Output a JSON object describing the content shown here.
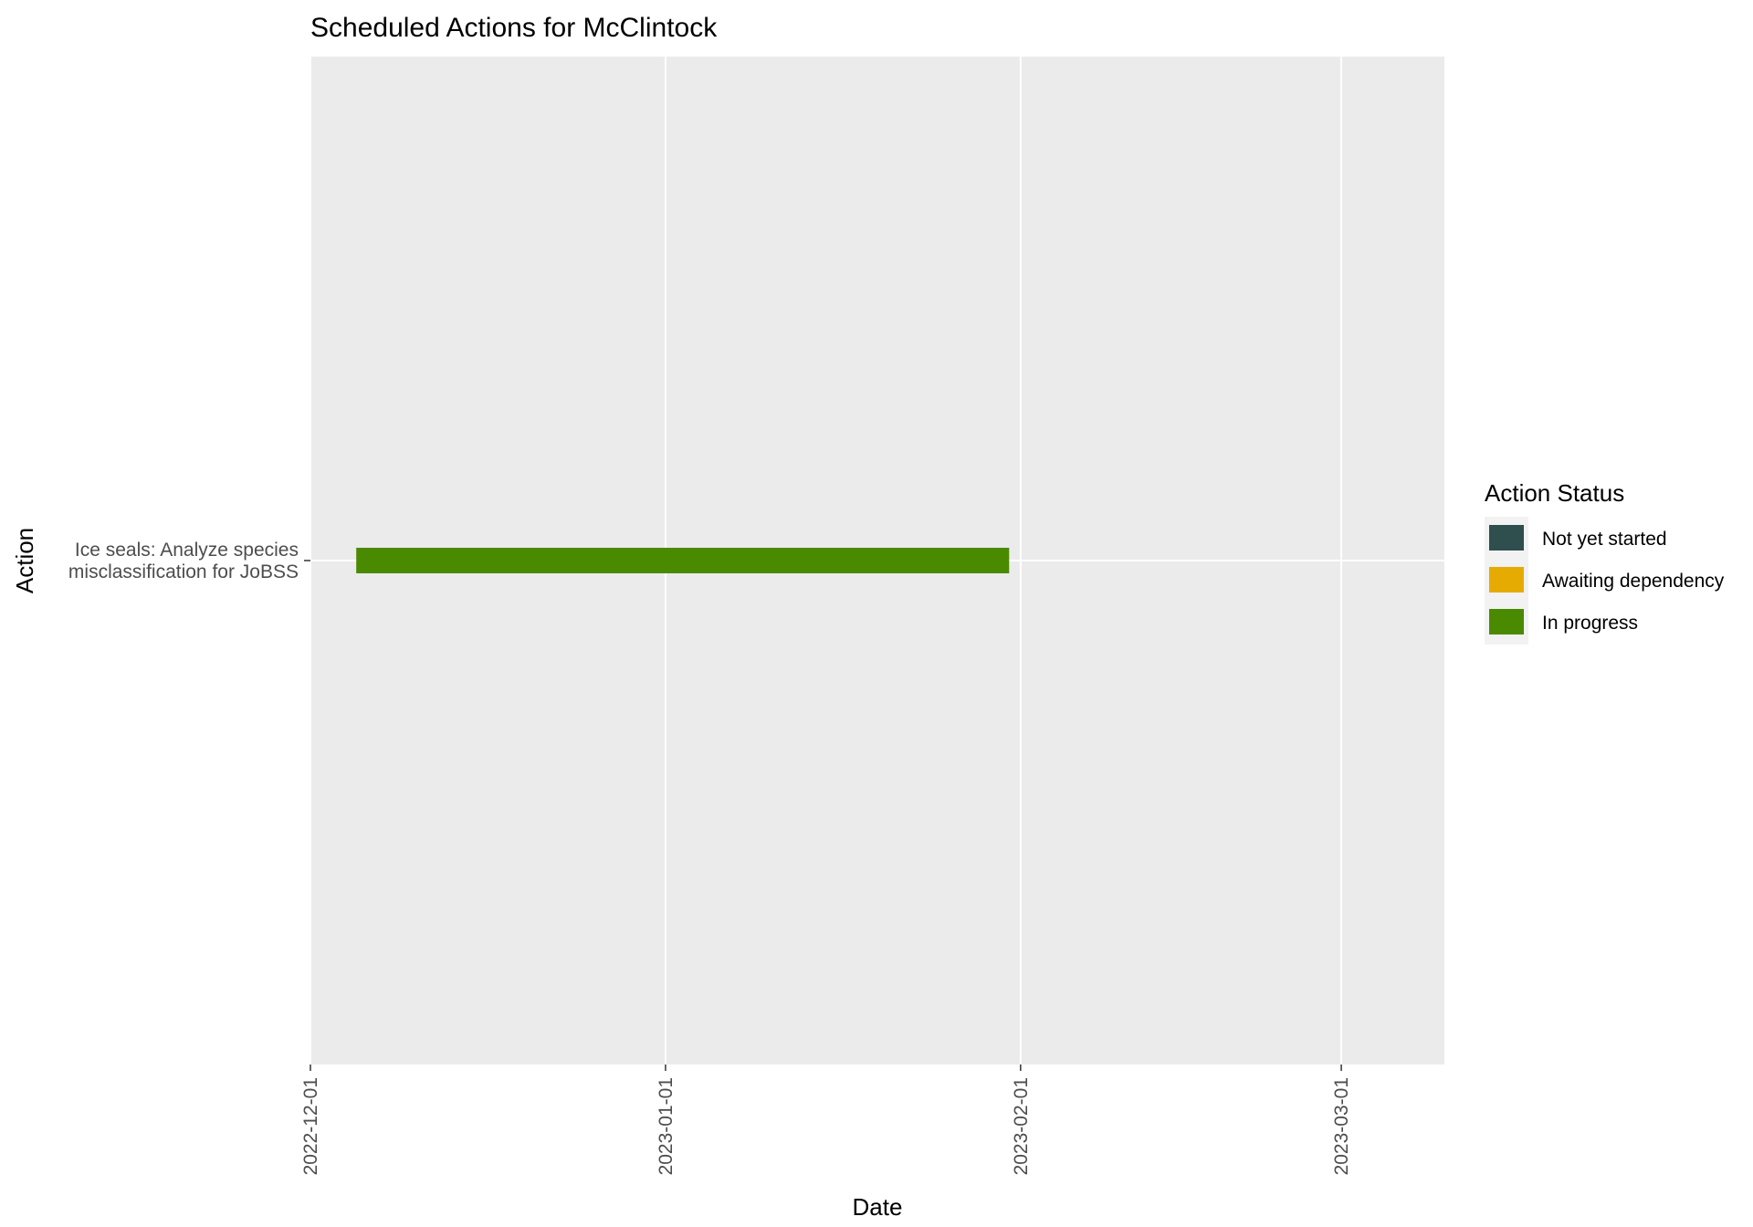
{
  "chart_data": {
    "type": "gantt",
    "title": "Scheduled Actions for McClintock",
    "xlabel": "Date",
    "ylabel": "Action",
    "x_ticks": [
      "2022-12-01",
      "2023-01-01",
      "2023-02-01",
      "2023-03-01"
    ],
    "xlim": [
      "2022-12-01",
      "2023-03-10"
    ],
    "grid": true,
    "legend": {
      "title": "Action Status",
      "position": "right",
      "entries": [
        {
          "label": "Not yet started",
          "color": "#2f4f4f"
        },
        {
          "label": "Awaiting dependency",
          "color": "#e6ab02"
        },
        {
          "label": "In progress",
          "color": "#4a8a00"
        }
      ]
    },
    "tasks": [
      {
        "label_lines": [
          "Ice seals: Analyze species",
          "misclassification for JoBSS"
        ],
        "start": "2022-12-05",
        "end": "2023-01-31",
        "status": "In progress"
      }
    ]
  }
}
